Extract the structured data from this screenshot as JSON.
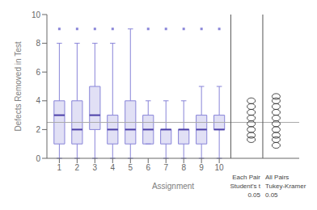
{
  "chart_data": {
    "type": "box",
    "ylabel": "Defects Removed in Test",
    "xlabel": "Assignment",
    "x": [
      1,
      2,
      3,
      4,
      5,
      6,
      7,
      8,
      9,
      10
    ],
    "xlim": [
      0.3,
      14.5
    ],
    "xticks": [
      1,
      2,
      3,
      4,
      5,
      6,
      7,
      8,
      9,
      10
    ],
    "ylim": [
      0,
      10
    ],
    "yticks": [
      0,
      2,
      4,
      6,
      8,
      10
    ],
    "boxes": [
      {
        "median": 3,
        "q1": 1,
        "q3": 4,
        "whislo": 0,
        "whishi": 8,
        "fliers": [
          9
        ]
      },
      {
        "median": 2,
        "q1": 1,
        "q3": 4,
        "whislo": 0,
        "whishi": 8,
        "fliers": [
          9
        ]
      },
      {
        "median": 3,
        "q1": 2,
        "q3": 5,
        "whislo": 0,
        "whishi": 8,
        "fliers": [
          9
        ]
      },
      {
        "median": 2,
        "q1": 1,
        "q3": 3,
        "whislo": 0,
        "whishi": 8,
        "fliers": [
          9
        ]
      },
      {
        "median": 2,
        "q1": 1,
        "q3": 4,
        "whislo": 0,
        "whishi": 9,
        "fliers": []
      },
      {
        "median": 2,
        "q1": 1,
        "q3": 3,
        "whislo": 1,
        "whishi": 4,
        "fliers": [
          9
        ]
      },
      {
        "median": 2,
        "q1": 1,
        "q3": 2,
        "whislo": 0,
        "whishi": 4,
        "fliers": [
          9
        ]
      },
      {
        "median": 2,
        "q1": 1,
        "q3": 2,
        "whislo": 0,
        "whishi": 4,
        "fliers": [
          9
        ]
      },
      {
        "median": 2,
        "q1": 1,
        "q3": 3,
        "whislo": 0,
        "whishi": 5,
        "fliers": [
          9
        ]
      },
      {
        "median": 2,
        "q1": 2,
        "q3": 3,
        "whislo": 0,
        "whishi": 5,
        "fliers": [
          9
        ]
      }
    ],
    "reference_line": 2.5,
    "separators": [
      10.65,
      12.45
    ],
    "comparison_circles": [
      {
        "x": 11.8,
        "values": [
          4.0,
          3.6,
          3.2,
          2.8,
          2.4,
          2.0,
          1.6,
          1.3
        ],
        "labels": [
          "Each Pair",
          "Student's t",
          "0.05"
        ]
      },
      {
        "x": 13.2,
        "values": [
          4.3,
          4.0,
          3.6,
          3.2,
          2.8,
          2.4,
          2.0,
          1.6,
          1.3,
          0.9
        ],
        "labels": [
          "All Pairs",
          "Tukey-Kramer",
          "0.05"
        ]
      }
    ]
  }
}
